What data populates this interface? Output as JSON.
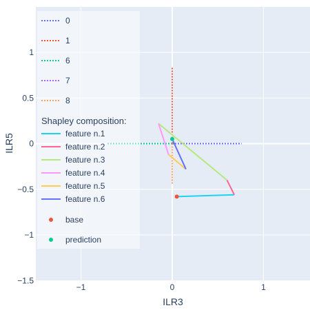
{
  "chart_data": {
    "type": "line",
    "xlabel": "ILR3",
    "ylabel": "ILR5",
    "xlim": [
      -1.5,
      1.5
    ],
    "ylim": [
      -1.5,
      1.5
    ],
    "grid": true,
    "legend_placement": "top-left",
    "x_ticks": [
      {
        "value": -1,
        "label": "−1"
      },
      {
        "value": 0,
        "label": "0"
      },
      {
        "value": 1,
        "label": "1"
      }
    ],
    "y_ticks": [
      {
        "value": -1.5,
        "label": "−1.5"
      },
      {
        "value": -1,
        "label": "−1"
      },
      {
        "value": -0.5,
        "label": "−0.5"
      },
      {
        "value": 0,
        "label": "0"
      },
      {
        "value": 0.5,
        "label": "0.5"
      },
      {
        "value": 1,
        "label": "1"
      }
    ],
    "dotted_series": [
      {
        "name": "0",
        "color": "#636efa",
        "x": [
          0,
          0.76
        ],
        "y": [
          0,
          0
        ]
      },
      {
        "name": "1",
        "color": "#ef553b",
        "x": [
          0,
          0
        ],
        "y": [
          0,
          0.84
        ]
      },
      {
        "name": "6",
        "color": "#00cc96",
        "x": [
          0,
          -0.72
        ],
        "y": [
          0,
          0
        ]
      },
      {
        "name": "7",
        "color": "#ab63fa",
        "x": [
          0,
          0
        ],
        "y": [
          0,
          0
        ]
      },
      {
        "name": "8",
        "color": "#ffa15a",
        "x": [
          0,
          0
        ],
        "y": [
          0,
          -0.44
        ]
      }
    ],
    "legend_group_title": "Shapley composition:",
    "shapley_series": [
      {
        "name": "feature n.1",
        "color": "#19d3f3",
        "x": [
          0.05,
          0.68
        ],
        "y": [
          -0.58,
          -0.56
        ]
      },
      {
        "name": "feature n.2",
        "color": "#ff6692",
        "x": [
          0.68,
          0.6
        ],
        "y": [
          -0.56,
          -0.4
        ]
      },
      {
        "name": "feature n.3",
        "color": "#b6e880",
        "x": [
          0.6,
          -0.15
        ],
        "y": [
          -0.4,
          0.22
        ]
      },
      {
        "name": "feature n.4",
        "color": "#ff97ff",
        "x": [
          -0.15,
          -0.04
        ],
        "y": [
          0.22,
          -0.12
        ]
      },
      {
        "name": "feature n.5",
        "color": "#fecb52",
        "x": [
          -0.04,
          0.15
        ],
        "y": [
          -0.12,
          -0.28
        ]
      },
      {
        "name": "feature n.6",
        "color": "#636efa",
        "x": [
          0.15,
          0.0
        ],
        "y": [
          -0.28,
          0.05
        ]
      }
    ],
    "points": [
      {
        "name": "base",
        "color": "#ef553b",
        "x": 0.05,
        "y": -0.58
      },
      {
        "name": "prediction",
        "color": "#00cc96",
        "x": 0.0,
        "y": 0.05
      }
    ]
  }
}
